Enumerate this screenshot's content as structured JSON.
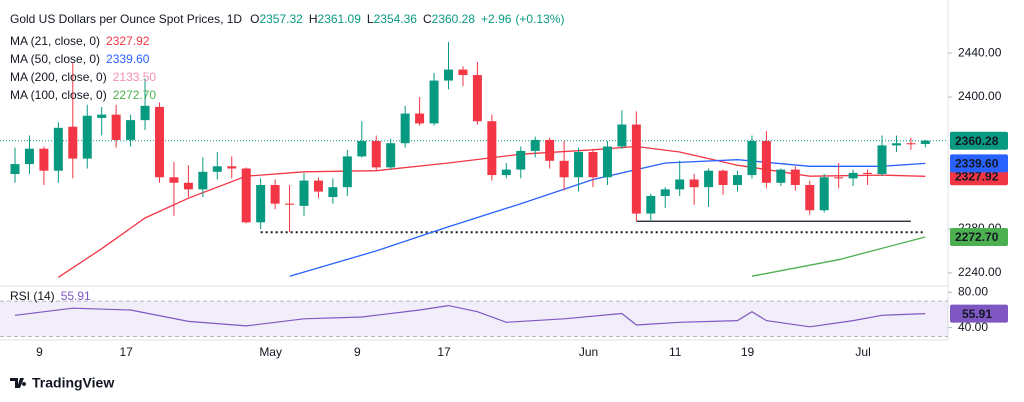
{
  "chart_data": {
    "type": "candlestick",
    "title": "Gold US Dollars per Ounce Spot Prices, 1D",
    "ohlc_labels": [
      "O",
      "H",
      "L",
      "C"
    ],
    "change": "+2.96",
    "change_pct": "(+0.13%)",
    "up_color": "#089981",
    "down_color": "#f23645",
    "categories": [
      null,
      "9",
      null,
      null,
      null,
      null,
      null,
      "17",
      null,
      null,
      null,
      null,
      null,
      null,
      null,
      null,
      null,
      "May",
      null,
      null,
      null,
      null,
      null,
      "9",
      null,
      null,
      null,
      null,
      null,
      "17",
      null,
      null,
      null,
      null,
      null,
      null,
      null,
      null,
      null,
      "Jun",
      null,
      null,
      null,
      null,
      null,
      "11",
      null,
      null,
      null,
      null,
      "19",
      null,
      null,
      null,
      null,
      null,
      null,
      null,
      "Jul",
      null,
      null,
      null,
      null,
      null
    ],
    "candles": [
      [
        2330,
        2354,
        2322,
        2339
      ],
      [
        2339,
        2365,
        2330,
        2353
      ],
      [
        2353,
        2355,
        2320,
        2333
      ],
      [
        2333,
        2377,
        2322,
        2372
      ],
      [
        2373,
        2431,
        2326,
        2344
      ],
      [
        2344,
        2393,
        2335,
        2383
      ],
      [
        2381,
        2391,
        2365,
        2384
      ],
      [
        2384,
        2393,
        2354,
        2361
      ],
      [
        2361,
        2384,
        2355,
        2379
      ],
      [
        2379,
        2417,
        2370,
        2392
      ],
      [
        2391,
        2395,
        2322,
        2327
      ],
      [
        2327,
        2341,
        2292,
        2322
      ],
      [
        2322,
        2338,
        2309,
        2316
      ],
      [
        2316,
        2345,
        2309,
        2332
      ],
      [
        2332,
        2350,
        2325,
        2337
      ],
      [
        2337,
        2346,
        2326,
        2335
      ],
      [
        2335,
        2336,
        2285,
        2286
      ],
      [
        2286,
        2326,
        2280,
        2320
      ],
      [
        2320,
        2325,
        2298,
        2303
      ],
      [
        2303,
        2320,
        2277,
        2302
      ],
      [
        2301,
        2331,
        2292,
        2324
      ],
      [
        2324,
        2327,
        2308,
        2314
      ],
      [
        2309,
        2326,
        2303,
        2318
      ],
      [
        2318,
        2352,
        2310,
        2346
      ],
      [
        2346,
        2378,
        2345,
        2360
      ],
      [
        2360,
        2365,
        2333,
        2336
      ],
      [
        2336,
        2362,
        2334,
        2358
      ],
      [
        2358,
        2392,
        2354,
        2385
      ],
      [
        2385,
        2400,
        2374,
        2376
      ],
      [
        2376,
        2422,
        2374,
        2415
      ],
      [
        2415,
        2450,
        2407,
        2425
      ],
      [
        2425,
        2428,
        2410,
        2420
      ],
      [
        2420,
        2432,
        2375,
        2378
      ],
      [
        2378,
        2384,
        2324,
        2329
      ],
      [
        2329,
        2340,
        2326,
        2334
      ],
      [
        2334,
        2355,
        2326,
        2351
      ],
      [
        2351,
        2364,
        2345,
        2361
      ],
      [
        2361,
        2363,
        2335,
        2342
      ],
      [
        2342,
        2360,
        2315,
        2327
      ],
      [
        2327,
        2354,
        2314,
        2350
      ],
      [
        2350,
        2353,
        2318,
        2327
      ],
      [
        2327,
        2360,
        2320,
        2355
      ],
      [
        2355,
        2388,
        2353,
        2375
      ],
      [
        2375,
        2387,
        2287,
        2294
      ],
      [
        2294,
        2312,
        2287,
        2310
      ],
      [
        2310,
        2318,
        2299,
        2316
      ],
      [
        2316,
        2342,
        2310,
        2325
      ],
      [
        2325,
        2330,
        2302,
        2318
      ],
      [
        2318,
        2335,
        2300,
        2333
      ],
      [
        2333,
        2334,
        2311,
        2320
      ],
      [
        2320,
        2333,
        2314,
        2329
      ],
      [
        2329,
        2365,
        2326,
        2360
      ],
      [
        2360,
        2369,
        2317,
        2322
      ],
      [
        2322,
        2335,
        2319,
        2334
      ],
      [
        2334,
        2337,
        2315,
        2320
      ],
      [
        2320,
        2324,
        2293,
        2297
      ],
      [
        2297,
        2330,
        2295,
        2327
      ],
      [
        2327,
        2340,
        2317,
        2326
      ],
      [
        2326,
        2334,
        2319,
        2331
      ],
      [
        2331,
        2334,
        2320,
        2330
      ],
      [
        2330,
        2365,
        2328,
        2356
      ],
      [
        2356,
        2365,
        2350,
        2358
      ],
      [
        2358,
        2363,
        2352,
        2357
      ],
      [
        2357.32,
        2361.09,
        2354.36,
        2360.28
      ]
    ],
    "ylim": [
      2229,
      2461
    ],
    "yticks": [
      {
        "value": 2240,
        "label": "2240.00"
      },
      {
        "value": 2280,
        "label": "2280.00"
      },
      {
        "value": 2400,
        "label": "2400.00"
      },
      {
        "value": 2440,
        "label": "2440.00"
      }
    ],
    "series": [
      {
        "name": "MA (21, close, 0)",
        "color": "#f23645",
        "x": [
          3,
          6,
          9,
          12,
          16,
          20,
          25,
          30,
          35,
          40,
          43,
          46,
          50,
          55,
          60,
          63
        ],
        "values": [
          2236,
          2262,
          2290,
          2308,
          2328,
          2332,
          2333,
          2340,
          2348,
          2352,
          2355,
          2350,
          2338,
          2328,
          2329,
          2327.92
        ]
      },
      {
        "name": "MA (50, close, 0)",
        "color": "#2962ff",
        "x": [
          19,
          25,
          30,
          35,
          40,
          45,
          50,
          55,
          60,
          63
        ],
        "values": [
          2237,
          2260,
          2282,
          2303,
          2325,
          2340,
          2343,
          2337,
          2337,
          2339.6
        ],
        "value_labels": [
          null,
          null,
          null,
          null,
          null,
          null,
          null,
          null,
          null,
          "2339.60"
        ]
      },
      {
        "name": "MA (200, close, 0)",
        "color": "#f48fb1",
        "x": [
          63
        ],
        "values": [
          2133.5
        ],
        "value_labels": [
          "2133.50"
        ]
      },
      {
        "name": "MA (100, close, 0)",
        "color": "#4caf50",
        "x": [
          51,
          57,
          63
        ],
        "values": [
          2237,
          2252,
          2272.7
        ],
        "value_labels": [
          null,
          null,
          "2272.70"
        ]
      }
    ],
    "lines": [
      {
        "y": 2277,
        "x": [
          17,
          63
        ],
        "style": "dotted"
      },
      {
        "y": 2287,
        "x": [
          43,
          62
        ],
        "style": "solid"
      }
    ],
    "rsi": {
      "name": "RSI (14)",
      "color": "#7e57c2",
      "x": [
        0,
        4,
        8,
        12,
        16,
        20,
        24,
        28,
        30,
        32,
        34,
        38,
        42,
        43,
        46,
        50,
        51,
        52,
        55,
        58,
        60,
        63
      ],
      "values": [
        54,
        62,
        60,
        47,
        42,
        50,
        52,
        60,
        65,
        58,
        46,
        50,
        56,
        43,
        46,
        48,
        58,
        48,
        41,
        48,
        54,
        55.91
      ],
      "ylim": [
        26,
        86
      ],
      "band": [
        30,
        70
      ],
      "yticks": [
        {
          "value": 40,
          "label": "40.00"
        },
        {
          "value": 80,
          "label": "80.00"
        }
      ]
    },
    "brand": "TradingView"
  }
}
